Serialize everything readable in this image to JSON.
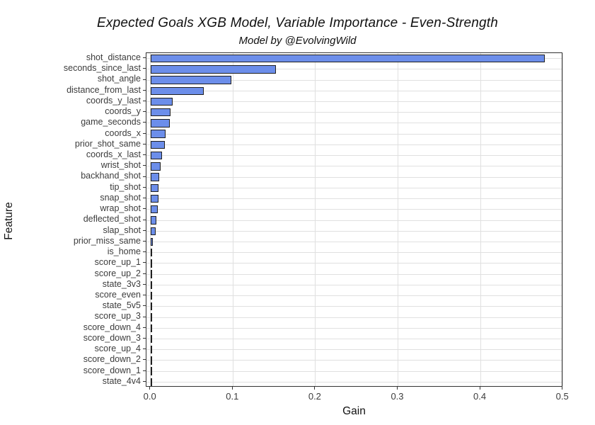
{
  "chart_data": {
    "type": "bar",
    "orientation": "horizontal",
    "title": "Expected Goals XGB Model, Variable Importance - Even-Strength",
    "subtitle": "Model by @EvolvingWild",
    "xlabel": "Gain",
    "ylabel": "Feature",
    "xlim": [
      0.0,
      0.5
    ],
    "xticks": [
      0.0,
      0.1,
      0.2,
      0.3,
      0.4,
      0.5
    ],
    "xtick_labels": [
      "0.0",
      "0.1",
      "0.2",
      "0.3",
      "0.4",
      "0.5"
    ],
    "grid": "major",
    "legend": "none",
    "bar_fill_color": "#6C8EEA",
    "bar_border_color": "#1f1f1f",
    "gridline_color": "#e0e0e0",
    "categories": [
      "shot_distance",
      "seconds_since_last",
      "shot_angle",
      "distance_from_last",
      "coords_y_last",
      "coords_y",
      "game_seconds",
      "coords_x",
      "prior_shot_same",
      "coords_x_last",
      "wrist_shot",
      "backhand_shot",
      "tip_shot",
      "snap_shot",
      "wrap_shot",
      "deflected_shot",
      "slap_shot",
      "prior_miss_same",
      "is_home",
      "score_up_1",
      "score_up_2",
      "state_3v3",
      "score_even",
      "state_5v5",
      "score_up_3",
      "score_down_4",
      "score_down_3",
      "score_up_4",
      "score_down_2",
      "score_down_1",
      "state_4v4"
    ],
    "values": [
      0.478,
      0.152,
      0.098,
      0.065,
      0.027,
      0.024,
      0.023,
      0.018,
      0.017,
      0.014,
      0.012,
      0.0105,
      0.0098,
      0.0093,
      0.009,
      0.007,
      0.006,
      0.0025,
      0.0012,
      0.0007,
      0.0006,
      0.0005,
      0.0005,
      0.0004,
      0.0004,
      0.0003,
      0.0003,
      0.0002,
      0.0002,
      0.0002,
      0.0001
    ]
  }
}
